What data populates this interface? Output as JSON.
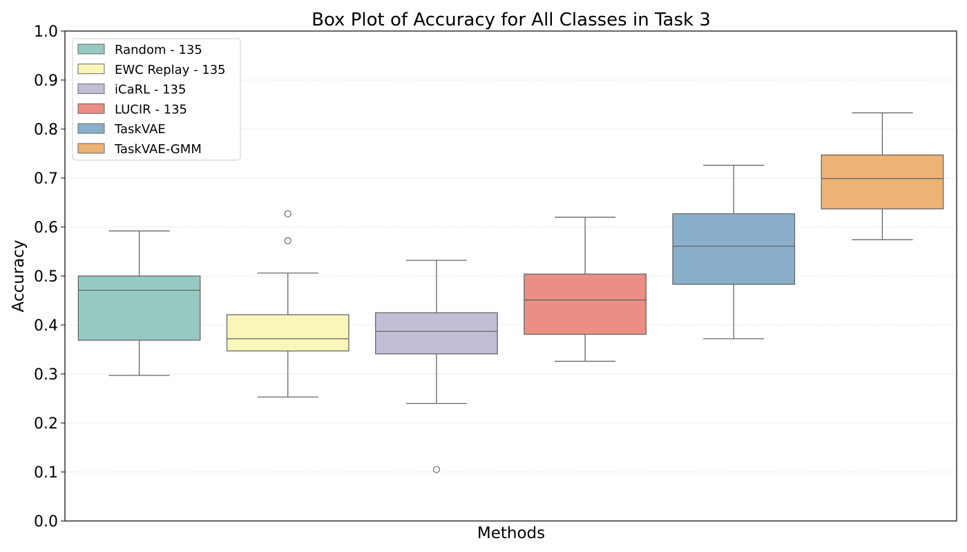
{
  "chart_data": {
    "type": "box",
    "title": "Box Plot of Accuracy for All Classes in Task 3",
    "xlabel": "Methods",
    "ylabel": "Accuracy",
    "ylim": [
      0.0,
      1.0
    ],
    "yticks": [
      "0.0",
      "0.1",
      "0.2",
      "0.3",
      "0.4",
      "0.5",
      "0.6",
      "0.7",
      "0.8",
      "0.9",
      "1.0"
    ],
    "grid": "horizontal dotted",
    "legend_position": "top-left",
    "series": [
      {
        "name": "Random - 135",
        "color": "#96cac0",
        "whisker_low": 0.297,
        "q1": 0.369,
        "median": 0.471,
        "q3": 0.5,
        "whisker_high": 0.592,
        "outliers": []
      },
      {
        "name": "EWC Replay - 135",
        "color": "#f8f7b9",
        "whisker_low": 0.253,
        "q1": 0.347,
        "median": 0.372,
        "q3": 0.421,
        "whisker_high": 0.506,
        "outliers": [
          0.572,
          0.627
        ]
      },
      {
        "name": "iCaRL - 135",
        "color": "#c1bed6",
        "whisker_low": 0.24,
        "q1": 0.341,
        "median": 0.387,
        "q3": 0.425,
        "whisker_high": 0.532,
        "outliers": [
          0.105
        ]
      },
      {
        "name": "LUCIR - 135",
        "color": "#eb8e83",
        "whisker_low": 0.326,
        "q1": 0.381,
        "median": 0.451,
        "q3": 0.504,
        "whisker_high": 0.62,
        "outliers": []
      },
      {
        "name": "TaskVAE",
        "color": "#8aafca",
        "whisker_low": 0.372,
        "q1": 0.483,
        "median": 0.561,
        "q3": 0.627,
        "whisker_high": 0.726,
        "outliers": []
      },
      {
        "name": "TaskVAE-GMM",
        "color": "#edb375",
        "whisker_low": 0.574,
        "q1": 0.637,
        "median": 0.699,
        "q3": 0.747,
        "whisker_high": 0.833,
        "outliers": []
      }
    ]
  }
}
